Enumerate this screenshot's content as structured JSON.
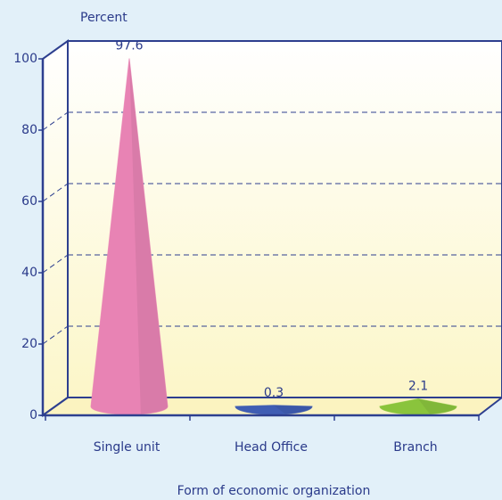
{
  "chart_data": {
    "type": "bar",
    "y_label": "Percent",
    "x_label": "Form of economic organization",
    "categories": [
      "Single unit",
      "Head Office",
      "Branch"
    ],
    "values": [
      97.6,
      0.3,
      2.1
    ],
    "colors": [
      "#e883b4",
      "#3f5db3",
      "#8ac43c"
    ],
    "ylim": [
      0,
      100
    ],
    "yticks": [
      0,
      20,
      40,
      60,
      80,
      100
    ],
    "grid": true
  }
}
